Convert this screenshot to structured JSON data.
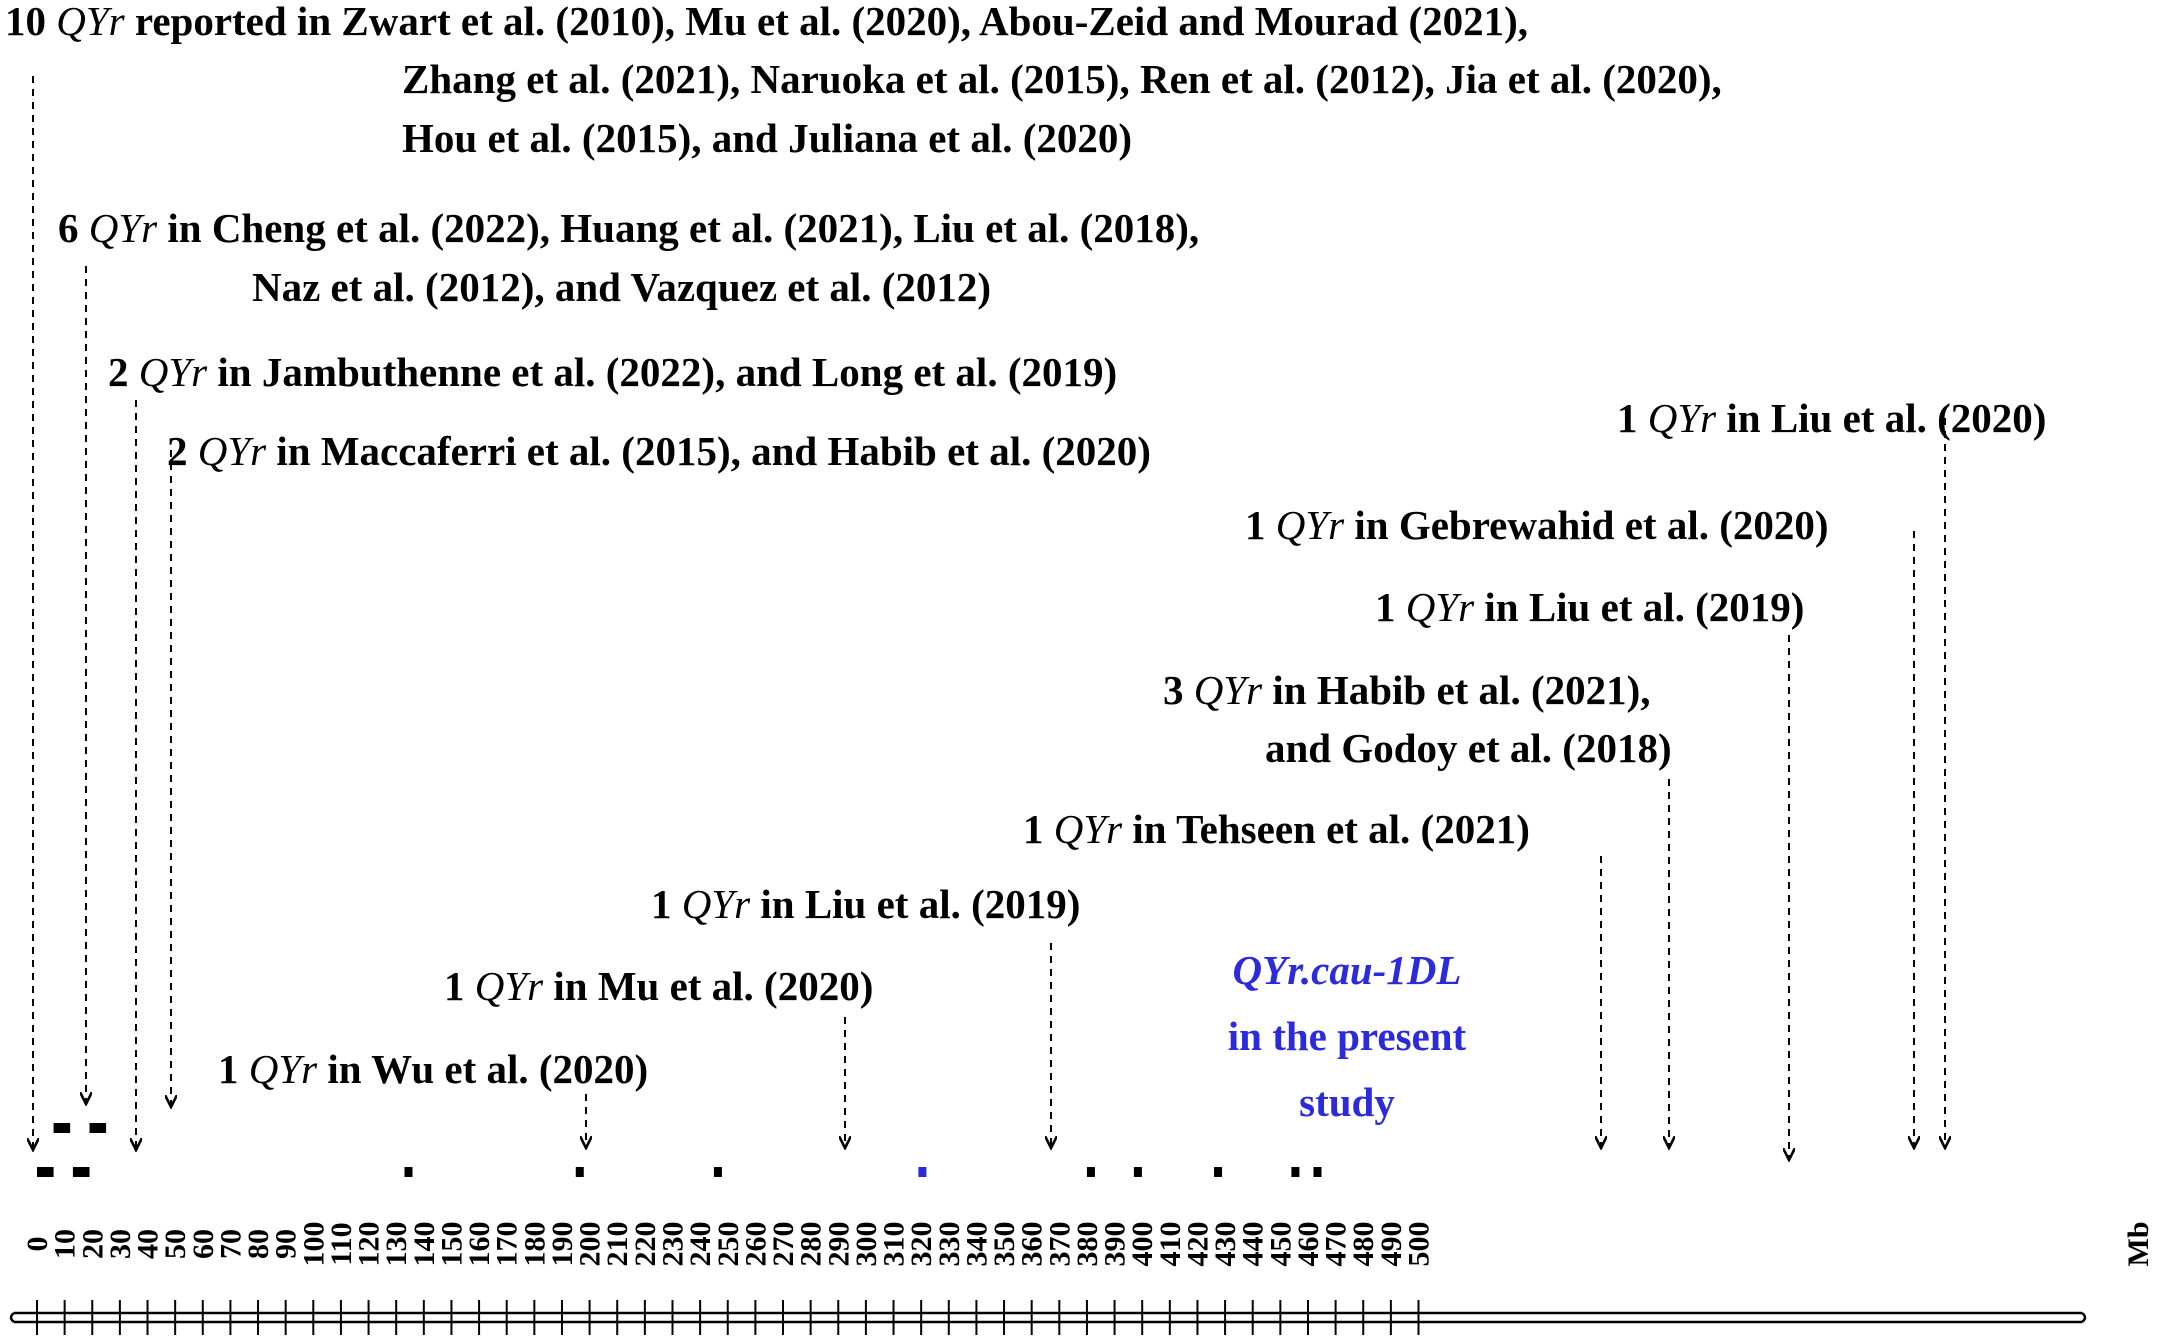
{
  "axis": {
    "unit": "Mb",
    "ticks": [
      "0",
      "10",
      "20",
      "30",
      "40",
      "50",
      "60",
      "70",
      "80",
      "90",
      "100",
      "110",
      "120",
      "130",
      "140",
      "150",
      "160",
      "170",
      "180",
      "190",
      "200",
      "210",
      "220",
      "230",
      "240",
      "250",
      "260",
      "270",
      "280",
      "290",
      "300",
      "310",
      "320",
      "330",
      "340",
      "350",
      "360",
      "370",
      "380",
      "390",
      "400",
      "410",
      "420",
      "430",
      "440",
      "450",
      "460",
      "470",
      "480",
      "490",
      "500"
    ]
  },
  "colors": {
    "text": "#000000",
    "highlight": "#2b2bdc"
  },
  "annotations": [
    {
      "lines": [
        [
          [
            "10 ",
            ""
          ],
          [
            "QYr",
            "i"
          ],
          [
            " reported in Zwart et al. (2010), Mu et al. (2020), Abou-Zeid and Mourad (2021),",
            ""
          ]
        ],
        [
          [
            "Zhang et al. (2021), Naruoka et al. (2015), Ren et al. (2012), Jia et al. (2020),",
            ""
          ]
        ],
        [
          [
            "Hou et al. (2015), and Juliana et al. (2020)",
            ""
          ]
        ]
      ]
    },
    {
      "lines": [
        [
          [
            "6 ",
            ""
          ],
          [
            "QYr",
            "i"
          ],
          [
            " in Cheng et al. (2022), Huang et al. (2021), Liu et al. (2018),",
            ""
          ]
        ],
        [
          [
            "Naz et al. (2012), and Vazquez et al. (2012)",
            ""
          ]
        ]
      ]
    },
    {
      "lines": [
        [
          [
            "2 ",
            ""
          ],
          [
            "QYr",
            "i"
          ],
          [
            " in Jambuthenne et al. (2022), and Long et al. (2019)",
            ""
          ]
        ]
      ]
    },
    {
      "lines": [
        [
          [
            "2 ",
            ""
          ],
          [
            "QYr",
            "i"
          ],
          [
            " in Maccaferri et al. (2015), and Habib et al. (2020)",
            ""
          ]
        ]
      ]
    },
    {
      "lines": [
        [
          [
            "1 ",
            ""
          ],
          [
            "QYr",
            "i"
          ],
          [
            " in Wu et al. (2020)",
            ""
          ]
        ]
      ]
    },
    {
      "lines": [
        [
          [
            "1 ",
            ""
          ],
          [
            "QYr",
            "i"
          ],
          [
            " in Mu et al. (2020)",
            ""
          ]
        ]
      ]
    },
    {
      "lines": [
        [
          [
            "1 ",
            ""
          ],
          [
            "QYr",
            "i"
          ],
          [
            " in Liu et al. (2019)",
            ""
          ]
        ]
      ]
    },
    {
      "lines": [
        [
          [
            "QYr.cau-1DL",
            "i"
          ]
        ],
        [
          [
            "in the  present",
            ""
          ]
        ],
        [
          [
            "study",
            ""
          ]
        ]
      ],
      "highlight": true
    },
    {
      "lines": [
        [
          [
            "1 ",
            ""
          ],
          [
            "QYr",
            "i"
          ],
          [
            " in Tehseen et al. (2021)",
            ""
          ]
        ]
      ]
    },
    {
      "lines": [
        [
          [
            "3 ",
            ""
          ],
          [
            "QYr",
            "i"
          ],
          [
            " in Habib et al. (2021),",
            ""
          ]
        ],
        [
          [
            "and Godoy et al. (2018)",
            ""
          ]
        ]
      ]
    },
    {
      "lines": [
        [
          [
            "1 ",
            ""
          ],
          [
            "QYr",
            "i"
          ],
          [
            " in Liu et al. (2019)",
            ""
          ]
        ]
      ]
    },
    {
      "lines": [
        [
          [
            "1 ",
            ""
          ],
          [
            "QYr",
            "i"
          ],
          [
            " in Gebrewahid et al. (2020)",
            ""
          ]
        ]
      ]
    },
    {
      "lines": [
        [
          [
            "1 ",
            ""
          ],
          [
            "QYr",
            "i"
          ],
          [
            " in Liu et al. (2020)",
            ""
          ]
        ]
      ]
    }
  ],
  "segments": [
    {
      "start": 0,
      "end": 6
    },
    {
      "start": 6,
      "end": 12
    },
    {
      "start": 13,
      "end": 19
    },
    {
      "start": 19,
      "end": 25
    },
    {
      "start": 133,
      "end": 134
    },
    {
      "start": 195,
      "end": 196
    },
    {
      "start": 245,
      "end": 246
    },
    {
      "start": 319,
      "end": 321,
      "highlight": true
    },
    {
      "start": 380,
      "end": 381
    },
    {
      "start": 397,
      "end": 398
    },
    {
      "start": 426,
      "end": 427
    },
    {
      "start": 454,
      "end": 455
    },
    {
      "start": 462,
      "end": 463
    }
  ]
}
